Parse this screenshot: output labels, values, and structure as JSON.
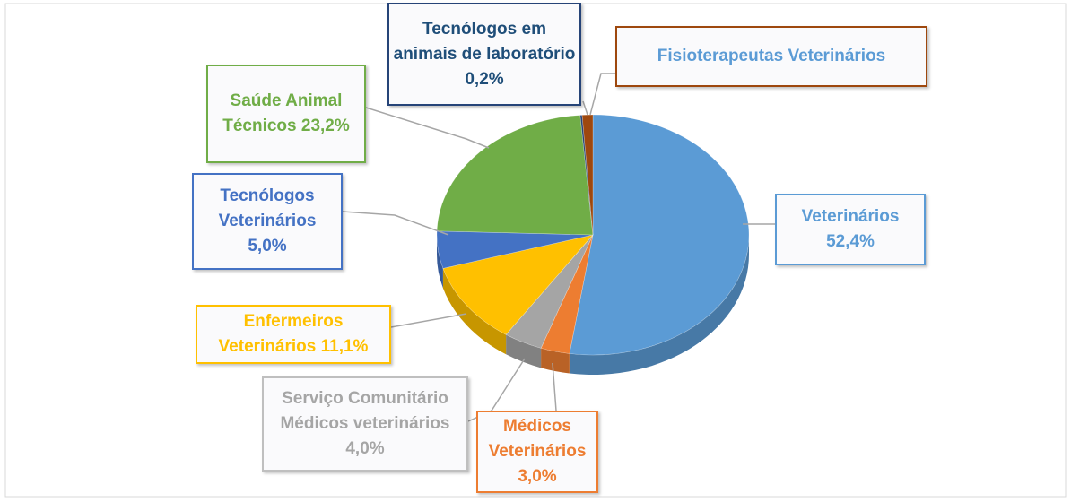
{
  "chart_data": {
    "type": "pie",
    "categories": [
      "Veterinários",
      "Médicos Veterinários",
      "Serviço Comunitário Médicos veterinários",
      "Enfermeiros Veterinários",
      "Tecnólogos Veterinários",
      "Saúde Animal Técnicos",
      "Tecnólogos em animais de laboratório",
      "Fisioterapeutas Veterinários"
    ],
    "values": [
      52.4,
      3.0,
      4.0,
      11.1,
      5.0,
      23.2,
      0.2,
      1.1
    ],
    "value_labels": [
      "52,4%",
      "3,0%",
      "4,0%",
      "11,1%",
      "5,0%",
      "23,2%",
      "0,2%",
      null
    ],
    "colors": [
      "#5b9bd5",
      "#ed7d31",
      "#a5a5a5",
      "#ffc000",
      "#4472c4",
      "#70ad47",
      "#264478",
      "#9e480e"
    ]
  }
}
